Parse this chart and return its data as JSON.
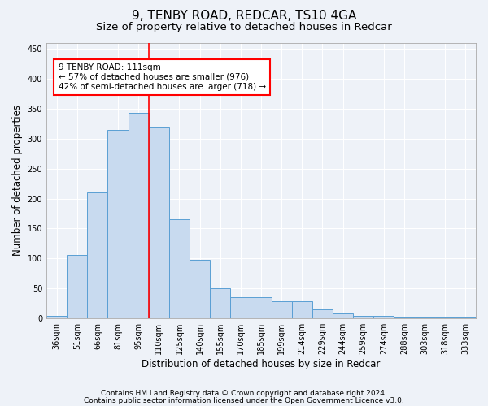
{
  "title1": "9, TENBY ROAD, REDCAR, TS10 4GA",
  "title2": "Size of property relative to detached houses in Redcar",
  "xlabel": "Distribution of detached houses by size in Redcar",
  "ylabel": "Number of detached properties",
  "categories": [
    "36sqm",
    "51sqm",
    "66sqm",
    "81sqm",
    "95sqm",
    "110sqm",
    "125sqm",
    "140sqm",
    "155sqm",
    "170sqm",
    "185sqm",
    "199sqm",
    "214sqm",
    "229sqm",
    "244sqm",
    "259sqm",
    "274sqm",
    "288sqm",
    "303sqm",
    "318sqm",
    "333sqm"
  ],
  "values": [
    5,
    106,
    210,
    315,
    343,
    318,
    165,
    98,
    50,
    35,
    35,
    29,
    29,
    15,
    8,
    5,
    5,
    2,
    1,
    1,
    1
  ],
  "bar_color": "#c8daef",
  "bar_edge_color": "#5a9fd4",
  "vline_index": 4,
  "annotation_text": "9 TENBY ROAD: 111sqm\n← 57% of detached houses are smaller (976)\n42% of semi-detached houses are larger (718) →",
  "annotation_box_color": "white",
  "annotation_box_edge_color": "red",
  "vline_color": "red",
  "ylim": [
    0,
    460
  ],
  "yticks": [
    0,
    50,
    100,
    150,
    200,
    250,
    300,
    350,
    400,
    450
  ],
  "bg_color": "#eef2f8",
  "grid_color": "white",
  "title1_fontsize": 11,
  "title2_fontsize": 9.5,
  "tick_fontsize": 7,
  "label_fontsize": 8.5,
  "footer_fontsize": 6.5,
  "footer1": "Contains HM Land Registry data © Crown copyright and database right 2024.",
  "footer2": "Contains public sector information licensed under the Open Government Licence v3.0."
}
